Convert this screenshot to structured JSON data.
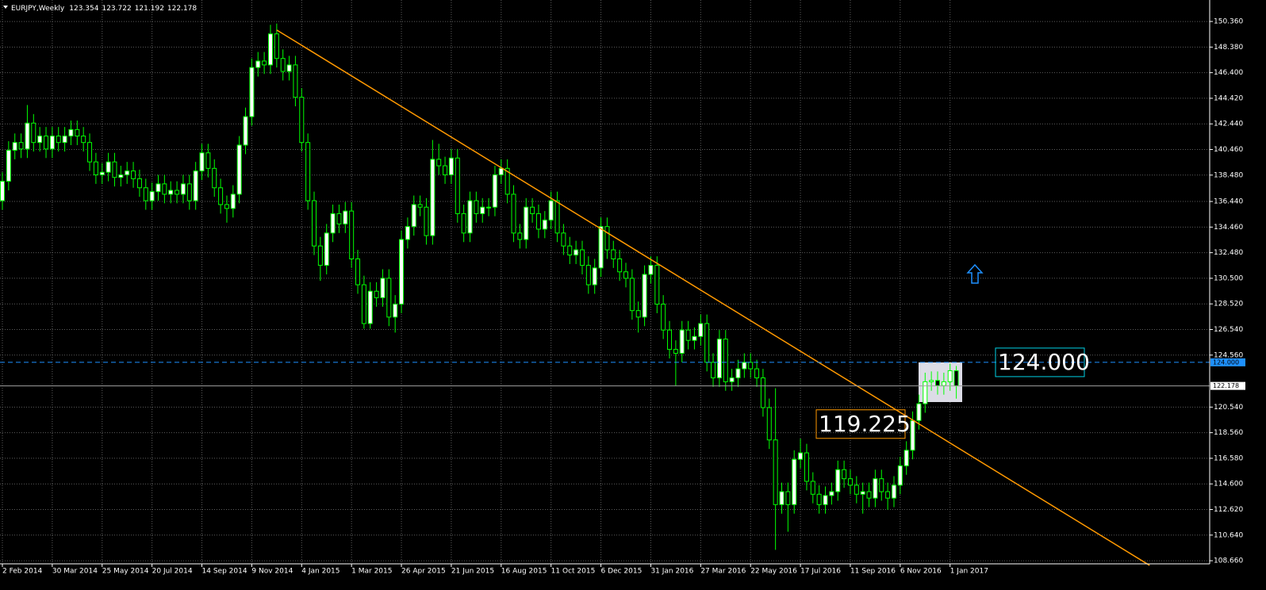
{
  "chart_data": {
    "type": "candlestick",
    "title": "EURJPY,Weekly",
    "categories": [
      "2 Feb 2014",
      null,
      null,
      null,
      null,
      null,
      null,
      null,
      "30 Mar 2014",
      null,
      null,
      null,
      null,
      null,
      null,
      null,
      "25 May 2014",
      null,
      null,
      null,
      null,
      null,
      null,
      null,
      "20 Jul 2014",
      null,
      null,
      null,
      null,
      null,
      null,
      null,
      "14 Sep 2014",
      null,
      null,
      null,
      null,
      null,
      null,
      null,
      "9 Nov 2014",
      null,
      null,
      null,
      null,
      null,
      null,
      null,
      "4 Jan 2015",
      null,
      null,
      null,
      null,
      null,
      null,
      null,
      "1 Mar 2015",
      null,
      null,
      null,
      null,
      null,
      null,
      null,
      "26 Apr 2015",
      null,
      null,
      null,
      null,
      null,
      null,
      null,
      "21 Jun 2015",
      null,
      null,
      null,
      null,
      null,
      null,
      null,
      "16 Aug 2015",
      null,
      null,
      null,
      null,
      null,
      null,
      null,
      "11 Oct 2015",
      null,
      null,
      null,
      null,
      null,
      null,
      null,
      "6 Dec 2015",
      null,
      null,
      null,
      null,
      null,
      null,
      null,
      "31 Jan 2016",
      null,
      null,
      null,
      null,
      null,
      null,
      null,
      "27 Mar 2016",
      null,
      null,
      null,
      null,
      null,
      null,
      null,
      "22 May 2016",
      null,
      null,
      null,
      null,
      null,
      null,
      null,
      "17 Jul 2016",
      null,
      null,
      null,
      null,
      null,
      null,
      null,
      "11 Sep 2016",
      null,
      null,
      null,
      null,
      null,
      null,
      null,
      "6 Nov 2016",
      null,
      null,
      null,
      null,
      null,
      null,
      null,
      "1 Jan 2017",
      null
    ],
    "open": [
      136.5,
      138.0,
      140.4,
      141.0,
      140.5,
      142.5,
      141.0,
      141.5,
      140.5,
      141.5,
      141.0,
      141.5,
      142.0,
      141.5,
      141.0,
      139.5,
      138.5,
      138.7,
      139.5,
      138.3,
      138.5,
      138.8,
      138.2,
      137.5,
      136.5,
      137.2,
      137.8,
      137.0,
      137.3,
      137.0,
      137.8,
      136.5,
      138.8,
      140.2,
      139.0,
      137.5,
      136.2,
      135.9,
      137.0,
      140.8,
      143.0,
      146.8,
      147.3,
      147.0,
      149.4,
      147.5,
      146.5,
      147.0,
      144.5,
      141.0,
      136.5,
      133.0,
      131.5,
      134.0,
      135.5,
      134.7,
      135.7,
      132.0,
      130.0,
      127.0,
      129.5,
      129.0,
      130.5,
      127.5,
      128.5,
      133.5,
      134.5,
      136.2,
      136.0,
      133.8,
      139.7,
      139.2,
      138.5,
      139.8,
      135.5,
      134.0,
      136.5,
      135.5,
      136.0,
      136.0,
      138.5,
      139.0,
      137.0,
      134.0,
      133.5,
      136.0,
      135.5,
      134.3,
      135.0,
      136.5,
      134.0,
      133.0,
      132.3,
      132.7,
      131.5,
      130.0,
      131.3,
      134.5,
      132.7,
      132.0,
      131.0,
      130.5,
      128.0,
      127.5,
      130.8,
      131.5,
      128.5,
      126.5,
      125.0,
      124.7,
      126.5,
      125.7,
      126.0,
      127.0,
      124.0,
      122.8,
      125.8,
      122.5,
      122.8,
      123.5,
      124.0,
      123.5,
      122.8,
      120.5,
      118.0,
      113.0,
      114.0,
      113.0,
      116.5,
      117.0,
      114.8,
      113.8,
      113.0,
      113.7,
      114.0,
      115.7,
      115.0,
      114.5,
      113.8,
      114.0,
      113.5,
      115.0,
      114.0,
      113.5,
      114.5,
      116.0,
      117.2,
      119.5,
      120.8,
      122.5,
      122.6,
      122.2,
      122.5,
      123.354
    ],
    "high": [
      138.7,
      141.1,
      141.7,
      141.7,
      143.9,
      143.2,
      142.2,
      142.2,
      142.2,
      142.2,
      142.2,
      142.7,
      142.7,
      142.2,
      141.7,
      140.2,
      139.4,
      140.2,
      140.2,
      139.2,
      139.5,
      139.5,
      138.9,
      138.2,
      137.9,
      138.5,
      138.5,
      138.0,
      138.0,
      138.5,
      138.5,
      139.5,
      140.9,
      140.9,
      139.7,
      138.2,
      136.9,
      137.7,
      141.5,
      143.7,
      147.5,
      148.0,
      148.0,
      150.1,
      150.2,
      148.2,
      147.7,
      147.7,
      145.2,
      141.7,
      137.2,
      133.7,
      134.7,
      136.2,
      136.2,
      136.4,
      136.4,
      132.7,
      130.7,
      130.2,
      130.2,
      131.2,
      131.2,
      129.2,
      134.2,
      135.2,
      136.9,
      136.9,
      136.7,
      141.2,
      140.9,
      139.9,
      140.5,
      140.5,
      136.2,
      137.2,
      137.2,
      136.7,
      136.7,
      139.2,
      139.7,
      139.7,
      137.7,
      134.7,
      136.7,
      136.7,
      136.2,
      135.7,
      137.2,
      137.2,
      134.7,
      133.7,
      133.4,
      133.4,
      132.2,
      132.0,
      135.2,
      135.2,
      133.4,
      132.7,
      131.7,
      131.2,
      128.7,
      131.5,
      132.2,
      132.2,
      129.2,
      127.2,
      125.7,
      127.2,
      127.2,
      126.7,
      127.7,
      127.7,
      124.7,
      126.5,
      126.5,
      123.5,
      124.2,
      124.7,
      124.7,
      124.2,
      123.5,
      121.2,
      122.0,
      114.7,
      114.7,
      117.2,
      118.1,
      117.7,
      115.5,
      114.5,
      114.4,
      114.7,
      116.4,
      116.4,
      115.7,
      115.2,
      114.7,
      114.7,
      115.7,
      115.7,
      114.7,
      115.2,
      116.7,
      117.9,
      120.2,
      121.5,
      123.2,
      123.3,
      123.3,
      123.2,
      123.9,
      123.722
    ],
    "low": [
      135.8,
      137.3,
      139.7,
      139.8,
      139.8,
      140.3,
      140.3,
      139.8,
      139.8,
      140.3,
      140.3,
      140.8,
      140.8,
      140.3,
      138.8,
      137.8,
      137.8,
      138.0,
      137.6,
      137.6,
      137.8,
      137.5,
      136.8,
      135.8,
      135.8,
      136.5,
      136.3,
      136.3,
      136.3,
      136.3,
      135.8,
      135.8,
      138.1,
      138.3,
      136.8,
      135.5,
      134.8,
      135.2,
      136.3,
      140.1,
      142.3,
      146.1,
      146.3,
      146.3,
      146.8,
      145.8,
      145.8,
      143.8,
      140.3,
      135.8,
      132.3,
      130.3,
      130.8,
      133.3,
      134.0,
      134.0,
      131.3,
      129.3,
      126.6,
      126.6,
      128.3,
      128.3,
      126.8,
      126.3,
      127.8,
      132.8,
      133.8,
      135.3,
      133.1,
      133.1,
      138.5,
      137.8,
      137.8,
      134.8,
      133.3,
      133.3,
      134.8,
      134.8,
      135.3,
      135.3,
      137.8,
      136.3,
      133.3,
      132.8,
      132.8,
      134.8,
      133.6,
      133.6,
      134.3,
      133.3,
      132.3,
      131.6,
      131.6,
      130.8,
      129.3,
      129.3,
      130.6,
      132.0,
      131.3,
      130.3,
      129.8,
      127.3,
      126.3,
      126.8,
      130.1,
      127.8,
      125.8,
      124.3,
      122.2,
      124.0,
      125.0,
      125.0,
      125.3,
      123.3,
      122.1,
      122.1,
      121.8,
      121.8,
      122.1,
      122.8,
      122.8,
      122.1,
      119.8,
      117.3,
      109.5,
      112.3,
      110.9,
      112.3,
      115.8,
      114.1,
      113.1,
      112.3,
      112.3,
      113.0,
      113.3,
      114.3,
      113.8,
      113.1,
      112.3,
      112.8,
      112.8,
      113.3,
      112.6,
      112.8,
      113.8,
      115.3,
      116.5,
      118.8,
      120.1,
      121.8,
      121.5,
      121.5,
      121.8,
      121.192
    ],
    "close": [
      138.0,
      140.4,
      141.0,
      140.5,
      142.5,
      141.0,
      141.5,
      140.5,
      141.5,
      141.0,
      141.5,
      142.0,
      141.5,
      141.0,
      139.5,
      138.5,
      138.7,
      139.5,
      138.3,
      138.5,
      138.8,
      138.2,
      137.5,
      136.5,
      137.2,
      137.8,
      137.0,
      137.3,
      137.0,
      137.8,
      136.5,
      138.8,
      140.2,
      139.0,
      137.5,
      136.2,
      135.9,
      137.0,
      140.8,
      143.0,
      146.8,
      147.3,
      147.0,
      149.4,
      147.5,
      146.5,
      147.0,
      144.5,
      141.0,
      136.5,
      133.0,
      131.5,
      134.0,
      135.5,
      134.7,
      135.7,
      132.0,
      130.0,
      127.0,
      129.5,
      129.0,
      130.5,
      127.5,
      128.5,
      133.5,
      134.5,
      136.2,
      136.0,
      133.8,
      139.7,
      139.2,
      138.5,
      139.8,
      135.5,
      134.0,
      136.5,
      135.5,
      136.0,
      136.0,
      138.5,
      139.0,
      137.0,
      134.0,
      133.5,
      136.0,
      135.5,
      134.3,
      135.0,
      136.5,
      134.0,
      133.0,
      132.3,
      132.7,
      131.5,
      130.0,
      131.3,
      134.5,
      132.7,
      132.0,
      131.0,
      130.5,
      128.0,
      127.5,
      130.8,
      131.5,
      128.5,
      126.5,
      125.0,
      124.7,
      126.5,
      125.7,
      126.0,
      127.0,
      124.0,
      122.8,
      125.8,
      122.5,
      122.8,
      123.5,
      124.0,
      123.5,
      122.8,
      120.5,
      118.0,
      113.0,
      114.0,
      113.0,
      116.5,
      117.0,
      114.8,
      113.8,
      113.0,
      113.7,
      114.0,
      115.7,
      115.0,
      114.5,
      113.8,
      114.0,
      113.5,
      115.0,
      114.0,
      113.5,
      114.5,
      116.0,
      117.2,
      119.5,
      120.8,
      122.5,
      122.6,
      122.2,
      122.5,
      123.354,
      122.178
    ],
    "up_color": "#ffffff",
    "down_color": "#000000",
    "wick_color": "#00ff00",
    "ylim": [
      108.48,
      152.02
    ],
    "yticks": [
      {
        "value": 150.36,
        "label": "150.360"
      },
      {
        "value": 148.38,
        "label": "148.380"
      },
      {
        "value": 146.4,
        "label": "146.400"
      },
      {
        "value": 144.42,
        "label": "144.420"
      },
      {
        "value": 142.44,
        "label": "142.440"
      },
      {
        "value": 140.46,
        "label": "140.460"
      },
      {
        "value": 138.48,
        "label": "138.480"
      },
      {
        "value": 136.44,
        "label": "136.440"
      },
      {
        "value": 134.46,
        "label": "134.460"
      },
      {
        "value": 132.48,
        "label": "132.480"
      },
      {
        "value": 130.5,
        "label": "130.500"
      },
      {
        "value": 128.52,
        "label": "128.520"
      },
      {
        "value": 126.54,
        "label": "126.540"
      },
      {
        "value": 124.56,
        "label": "124.560"
      },
      {
        "value": 120.54,
        "label": "120.540"
      },
      {
        "value": 118.56,
        "label": "118.560"
      },
      {
        "value": 116.58,
        "label": "116.580"
      },
      {
        "value": 114.6,
        "label": "114.600"
      },
      {
        "value": 112.62,
        "label": "112.620"
      },
      {
        "value": 110.64,
        "label": "110.640"
      },
      {
        "value": 108.66,
        "label": "108.660"
      }
    ],
    "grid": true,
    "grid_color": "#5c5c5c",
    "hline": {
      "value": 124,
      "label": "124.000",
      "color": "#1e90ff",
      "label_color": "#00d2e6"
    },
    "trendline": {
      "color": "#ff9900",
      "x": [
        44,
        184
      ],
      "y": [
        149.7,
        108.3
      ]
    },
    "trendline_label": 119.225,
    "bid_color": "#a0a0a0"
  }
}
